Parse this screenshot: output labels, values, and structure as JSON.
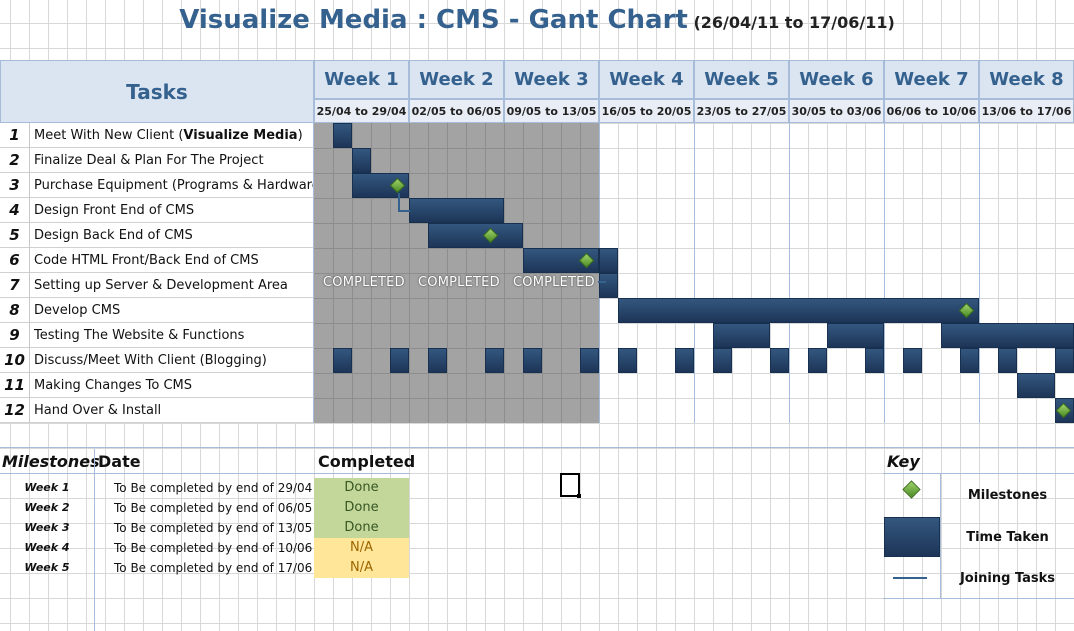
{
  "title": {
    "main": "Visualize Media : CMS - Gant Chart",
    "range": "(26/04/11 to 17/06/11)"
  },
  "header": {
    "tasks_label": "Tasks",
    "weeks": [
      {
        "label": "Week 1",
        "range": "25/04 to 29/04"
      },
      {
        "label": "Week 2",
        "range": "02/05 to 06/05"
      },
      {
        "label": "Week 3",
        "range": "09/05 to 13/05"
      },
      {
        "label": "Week 4",
        "range": "16/05 to 20/05"
      },
      {
        "label": "Week 5",
        "range": "23/05 to 27/05"
      },
      {
        "label": "Week 6",
        "range": "30/05 to 03/06"
      },
      {
        "label": "Week 7",
        "range": "06/06 to 10/06"
      },
      {
        "label": "Week 8",
        "range": "13/06 to 17/06"
      }
    ]
  },
  "tasks": [
    {
      "num": "1",
      "name_plain": "Meet With New Client (",
      "name_bold": "Visualize Media",
      "name_tail": ")"
    },
    {
      "num": "2",
      "name_plain": "Finalize Deal & Plan For The Project",
      "name_bold": "",
      "name_tail": ""
    },
    {
      "num": "3",
      "name_plain": "Purchase Equipment  (Programs & Hardware)",
      "name_bold": "",
      "name_tail": ""
    },
    {
      "num": "4",
      "name_plain": "Design Front End of CMS",
      "name_bold": "",
      "name_tail": ""
    },
    {
      "num": "5",
      "name_plain": "Design Back End of CMS",
      "name_bold": "",
      "name_tail": ""
    },
    {
      "num": "6",
      "name_plain": "Code HTML Front/Back End of CMS",
      "name_bold": "",
      "name_tail": ""
    },
    {
      "num": "7",
      "name_plain": "Setting up Server & Development Area",
      "name_bold": "",
      "name_tail": ""
    },
    {
      "num": "8",
      "name_plain": "Develop CMS",
      "name_bold": "",
      "name_tail": ""
    },
    {
      "num": "9",
      "name_plain": "Testing The Website & Functions",
      "name_bold": "",
      "name_tail": ""
    },
    {
      "num": "10",
      "name_plain": "Discuss/Meet With Client (Blogging)",
      "name_bold": "",
      "name_tail": ""
    },
    {
      "num": "11",
      "name_plain": "Making Changes To CMS",
      "name_bold": "",
      "name_tail": ""
    },
    {
      "num": "12",
      "name_plain": "Hand Over & Install",
      "name_bold": "",
      "name_tail": ""
    }
  ],
  "completed_labels": [
    "COMPLETED",
    "COMPLETED",
    "COMPLETED"
  ],
  "milestones": {
    "header_milestones": "Milestones",
    "header_date": "Date",
    "header_completed": "Completed",
    "rows": [
      {
        "week": "Week 1",
        "date": "To Be completed by end of 29/04",
        "status": "Done"
      },
      {
        "week": "Week 2",
        "date": "To Be completed by end of 06/05",
        "status": "Done"
      },
      {
        "week": "Week 3",
        "date": "To Be completed by end of 13/05",
        "status": "Done"
      },
      {
        "week": "Week 4",
        "date": "To Be completed by end of 10/06",
        "status": "N/A"
      },
      {
        "week": "Week 5",
        "date": "To Be completed by end of 17/06",
        "status": "N/A"
      }
    ]
  },
  "key": {
    "title": "Key",
    "milestones": "Milestones",
    "time_taken": "Time Taken",
    "joining_tasks": "Joining Tasks"
  },
  "colors": {
    "bar": "#1d3557",
    "milestone": "#6aaa3a",
    "header_bg": "#dbe5f1",
    "completed_zone": "#a3a3a3",
    "done_bg": "#c4d79b",
    "na_bg": "#ffe699"
  }
}
